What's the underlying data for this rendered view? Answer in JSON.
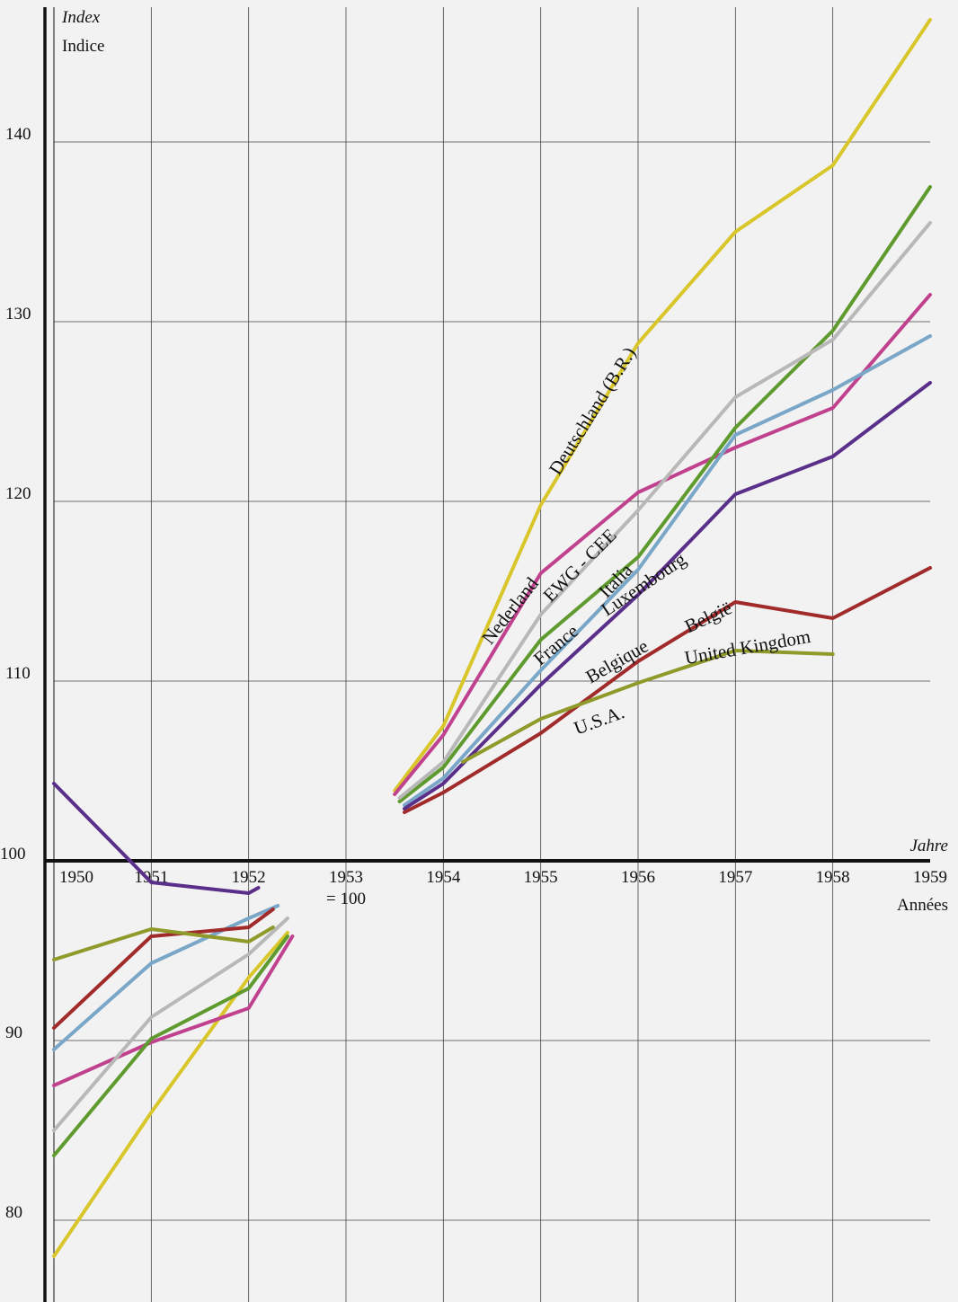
{
  "chart_data": {
    "type": "line",
    "ylabel_top": "Index",
    "ylabel_bottom": "Indice",
    "xlabel_top": "Jahre",
    "xlabel_bottom": "Années",
    "base_note": "= 100",
    "x_ticks": [
      "1950",
      "1951",
      "1952",
      "1953",
      "1954",
      "1955",
      "1956",
      "1957",
      "1958",
      "1959"
    ],
    "y_ticks": [
      80,
      90,
      100,
      110,
      120,
      130,
      140
    ],
    "y_tick_labels": [
      "80",
      "90",
      "100",
      "110",
      "120",
      "130",
      "140"
    ],
    "xlim": [
      1950,
      1959
    ],
    "ylim": [
      75,
      147
    ],
    "grid": true,
    "series": [
      {
        "name": "Deutschland (B.R.)",
        "color": "#d9c62a",
        "segments": [
          [
            [
              1950,
              78
            ],
            [
              1951,
              86
            ],
            [
              1952,
              93.5
            ],
            [
              1952.4,
              96
            ]
          ],
          [
            [
              1953.5,
              103.9
            ],
            [
              1954,
              107.5
            ],
            [
              1955,
              119.8
            ],
            [
              1956,
              128.8
            ],
            [
              1957,
              135
            ],
            [
              1958,
              138.7
            ],
            [
              1959,
              146.8
            ]
          ]
        ]
      },
      {
        "name": "Nederland",
        "color": "#c0428e",
        "segments": [
          [
            [
              1950,
              87.5
            ],
            [
              1951,
              89.9
            ],
            [
              1952,
              91.8
            ],
            [
              1952.45,
              95.8
            ]
          ],
          [
            [
              1953.5,
              103.7
            ],
            [
              1954,
              107
            ],
            [
              1955,
              116
            ],
            [
              1956,
              120.5
            ],
            [
              1957,
              123
            ],
            [
              1958,
              125.2
            ],
            [
              1959,
              131.5
            ]
          ]
        ]
      },
      {
        "name": "EWG - CEE",
        "color": "#5e9a2e",
        "segments": [
          [
            [
              1950,
              83.6
            ],
            [
              1951,
              90.1
            ],
            [
              1952,
              92.9
            ],
            [
              1952.4,
              95.8
            ]
          ],
          [
            [
              1953.55,
              103.3
            ],
            [
              1954,
              105.2
            ],
            [
              1955,
              112.3
            ],
            [
              1956,
              116.9
            ],
            [
              1957,
              124.1
            ],
            [
              1958,
              129.5
            ],
            [
              1959,
              137.5
            ]
          ]
        ]
      },
      {
        "name": "France",
        "color": "#b8b8b8",
        "segments": [
          [
            [
              1950,
              85
            ],
            [
              1951,
              91.3
            ],
            [
              1952,
              94.8
            ],
            [
              1952.4,
              96.8
            ]
          ],
          [
            [
              1953.55,
              103.5
            ],
            [
              1954,
              105.5
            ],
            [
              1955,
              113.7
            ],
            [
              1956,
              119.5
            ],
            [
              1957,
              125.8
            ],
            [
              1958,
              129
            ],
            [
              1959,
              135.5
            ]
          ]
        ]
      },
      {
        "name": "Italia",
        "color": "#7aa6c8",
        "segments": [
          [
            [
              1950,
              89.5
            ],
            [
              1951,
              94.3
            ],
            [
              1952,
              96.8
            ],
            [
              1952.3,
              97.5
            ]
          ],
          [
            [
              1953.6,
              103.1
            ],
            [
              1954,
              104.6
            ],
            [
              1955,
              110.6
            ],
            [
              1956,
              116.2
            ],
            [
              1957,
              123.7
            ],
            [
              1958,
              126.2
            ],
            [
              1959,
              129.2
            ]
          ]
        ]
      },
      {
        "name": "Luxembourg",
        "color": "#5a2f8a",
        "segments": [
          [
            [
              1950,
              104.3
            ],
            [
              1951,
              98.8
            ],
            [
              1952,
              98.2
            ],
            [
              1952.1,
              98.5
            ]
          ],
          [
            [
              1953.6,
              102.9
            ],
            [
              1954,
              104.3
            ],
            [
              1955,
              109.8
            ],
            [
              1956,
              114.8
            ],
            [
              1957,
              120.4
            ],
            [
              1958,
              122.5
            ],
            [
              1959,
              126.6
            ]
          ]
        ]
      },
      {
        "name": "Belgique - België",
        "color": "#a12a2a",
        "segments": [
          [
            [
              1950,
              90.7
            ],
            [
              1951,
              95.8
            ],
            [
              1952,
              96.3
            ],
            [
              1952.25,
              97.3
            ]
          ],
          [
            [
              1953.6,
              102.7
            ],
            [
              1954,
              103.8
            ],
            [
              1955,
              107.1
            ],
            [
              1956,
              111.1
            ],
            [
              1957,
              114.4
            ],
            [
              1958,
              113.5
            ],
            [
              1959,
              116.3
            ]
          ]
        ]
      },
      {
        "name": "United Kingdom",
        "color": "#8f9a2a",
        "segments": [
          [
            [
              1950,
              94.5
            ],
            [
              1951,
              96.2
            ],
            [
              1952,
              95.5
            ],
            [
              1952.25,
              96.3
            ]
          ],
          [
            [
              1954.2,
              105.5
            ],
            [
              1955,
              107.9
            ],
            [
              1956,
              109.9
            ],
            [
              1957,
              111.7
            ],
            [
              1958,
              111.5
            ]
          ]
        ]
      }
    ],
    "annotations": [
      {
        "text": "Deutschland (B.R.)"
      },
      {
        "text": "Nederland"
      },
      {
        "text": "EWG - CEE"
      },
      {
        "text": "France"
      },
      {
        "text": "Italia"
      },
      {
        "text": "Luxembourg"
      },
      {
        "text": "Belgique"
      },
      {
        "text": "België"
      },
      {
        "text": "United Kingdom"
      },
      {
        "text": "U.S.A."
      }
    ]
  }
}
